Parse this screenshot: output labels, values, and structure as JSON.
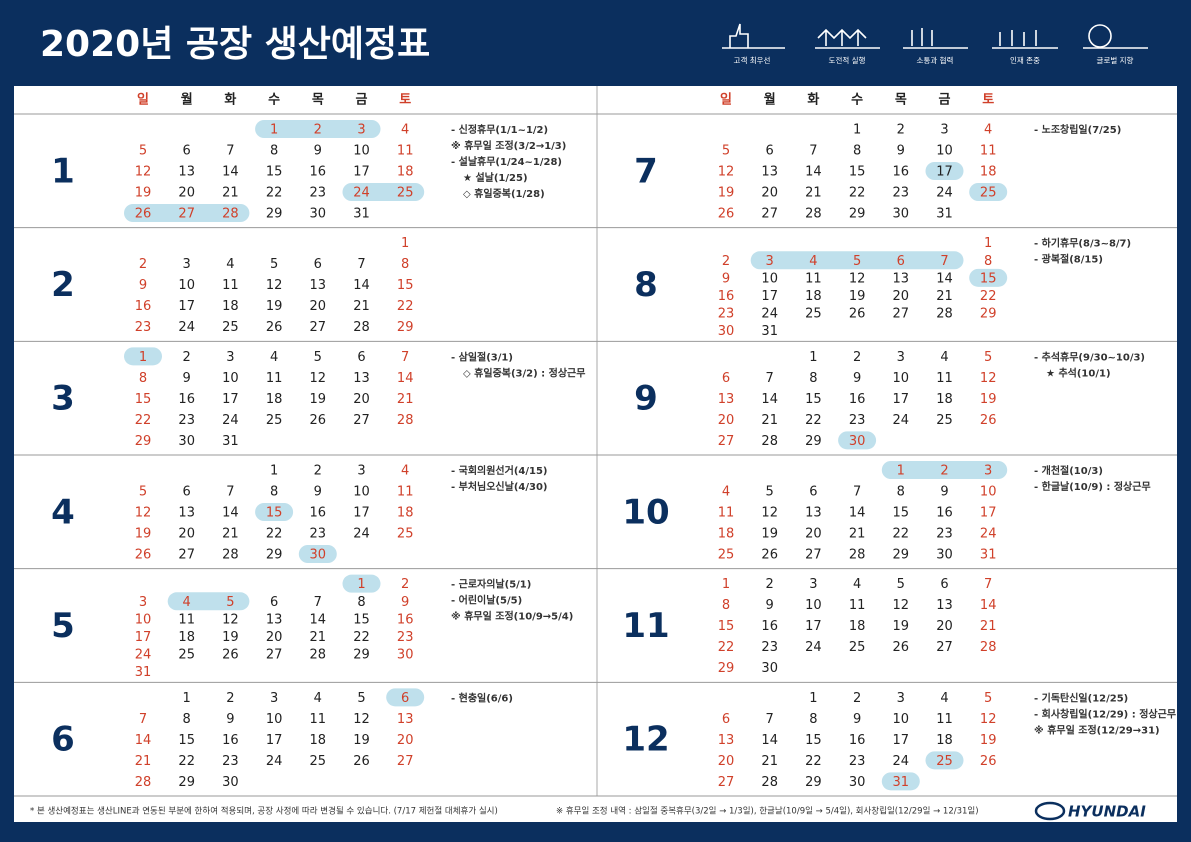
{
  "header": {
    "title": "2020년 공장 생산예정표",
    "values": [
      "고객 최우선",
      "도전적 실행",
      "소통과 협력",
      "인재 존중",
      "글로벌 지향"
    ]
  },
  "weekdays": [
    "일",
    "월",
    "화",
    "수",
    "목",
    "금",
    "토"
  ],
  "months": [
    {
      "label": "1",
      "weeks": [
        [
          null,
          null,
          null,
          1,
          2,
          3,
          4
        ],
        [
          5,
          6,
          7,
          8,
          9,
          10,
          11
        ],
        [
          12,
          13,
          14,
          15,
          16,
          17,
          18
        ],
        [
          19,
          20,
          21,
          22,
          23,
          24,
          25
        ],
        [
          26,
          27,
          28,
          29,
          30,
          31,
          null
        ]
      ],
      "red": [
        1,
        2,
        3,
        24,
        27,
        28
      ],
      "highlight": [
        1,
        2,
        3,
        24,
        25,
        26,
        27,
        28
      ],
      "notes": [
        "- 신정휴무(1/1~1/2)",
        "※ 휴무일 조정(3/2→1/3)",
        "- 설날휴무(1/24~1/28)",
        "★ 설날(1/25)",
        "◇ 휴일중복(1/28)"
      ]
    },
    {
      "label": "2",
      "weeks": [
        [
          null,
          null,
          null,
          null,
          null,
          null,
          1
        ],
        [
          2,
          3,
          4,
          5,
          6,
          7,
          8
        ],
        [
          9,
          10,
          11,
          12,
          13,
          14,
          15
        ],
        [
          16,
          17,
          18,
          19,
          20,
          21,
          22
        ],
        [
          23,
          24,
          25,
          26,
          27,
          28,
          29
        ]
      ],
      "red": [],
      "highlight": [],
      "notes": []
    },
    {
      "label": "3",
      "weeks": [
        [
          1,
          2,
          3,
          4,
          5,
          6,
          7
        ],
        [
          8,
          9,
          10,
          11,
          12,
          13,
          14
        ],
        [
          15,
          16,
          17,
          18,
          19,
          20,
          21
        ],
        [
          22,
          23,
          24,
          25,
          26,
          27,
          28
        ],
        [
          29,
          30,
          31,
          null,
          null,
          null,
          null
        ]
      ],
      "red": [],
      "highlight": [
        1
      ],
      "notes": [
        "- 삼일절(3/1)",
        "◇ 휴일중복(3/2) : 정상근무"
      ]
    },
    {
      "label": "4",
      "weeks": [
        [
          null,
          null,
          null,
          1,
          2,
          3,
          4
        ],
        [
          5,
          6,
          7,
          8,
          9,
          10,
          11
        ],
        [
          12,
          13,
          14,
          15,
          16,
          17,
          18
        ],
        [
          19,
          20,
          21,
          22,
          23,
          24,
          25
        ],
        [
          26,
          27,
          28,
          29,
          30,
          null,
          null
        ]
      ],
      "red": [
        15,
        30
      ],
      "highlight": [
        15,
        30
      ],
      "notes": [
        "- 국회의원선거(4/15)",
        "- 부처님오신날(4/30)"
      ]
    },
    {
      "label": "5",
      "weeks": [
        [
          null,
          null,
          null,
          null,
          null,
          1,
          2
        ],
        [
          3,
          4,
          5,
          6,
          7,
          8,
          9
        ],
        [
          10,
          11,
          12,
          13,
          14,
          15,
          16
        ],
        [
          17,
          18,
          19,
          20,
          21,
          22,
          23
        ],
        [
          24,
          25,
          26,
          27,
          28,
          29,
          30
        ],
        [
          31,
          null,
          null,
          null,
          null,
          null,
          null
        ]
      ],
      "red": [
        1,
        4,
        5
      ],
      "highlight": [
        1,
        4,
        5
      ],
      "notes": [
        "- 근로자의날(5/1)",
        "- 어린이날(5/5)",
        "※ 휴무일 조정(10/9→5/4)"
      ]
    },
    {
      "label": "6",
      "weeks": [
        [
          null,
          1,
          2,
          3,
          4,
          5,
          6
        ],
        [
          7,
          8,
          9,
          10,
          11,
          12,
          13
        ],
        [
          14,
          15,
          16,
          17,
          18,
          19,
          20
        ],
        [
          21,
          22,
          23,
          24,
          25,
          26,
          27
        ],
        [
          28,
          29,
          30,
          null,
          null,
          null,
          null
        ]
      ],
      "red": [],
      "highlight": [
        6
      ],
      "notes": [
        "- 현충일(6/6)"
      ]
    },
    {
      "label": "7",
      "weeks": [
        [
          null,
          null,
          null,
          1,
          2,
          3,
          4
        ],
        [
          5,
          6,
          7,
          8,
          9,
          10,
          11
        ],
        [
          12,
          13,
          14,
          15,
          16,
          17,
          18
        ],
        [
          19,
          20,
          21,
          22,
          23,
          24,
          25
        ],
        [
          26,
          27,
          28,
          29,
          30,
          31,
          null
        ]
      ],
      "red": [],
      "highlight": [
        17,
        25
      ],
      "notes": [
        "- 노조창립일(7/25)"
      ]
    },
    {
      "label": "8",
      "weeks": [
        [
          null,
          null,
          null,
          null,
          null,
          null,
          1
        ],
        [
          2,
          3,
          4,
          5,
          6,
          7,
          8
        ],
        [
          9,
          10,
          11,
          12,
          13,
          14,
          15
        ],
        [
          16,
          17,
          18,
          19,
          20,
          21,
          22
        ],
        [
          23,
          24,
          25,
          26,
          27,
          28,
          29
        ],
        [
          30,
          31,
          null,
          null,
          null,
          null,
          null
        ]
      ],
      "red": [
        3,
        4,
        5,
        6,
        7,
        15
      ],
      "highlight": [
        3,
        4,
        5,
        6,
        7,
        15
      ],
      "notes": [
        "- 하기휴무(8/3~8/7)",
        "- 광복절(8/15)"
      ]
    },
    {
      "label": "9",
      "weeks": [
        [
          null,
          null,
          1,
          2,
          3,
          4,
          5
        ],
        [
          6,
          7,
          8,
          9,
          10,
          11,
          12
        ],
        [
          13,
          14,
          15,
          16,
          17,
          18,
          19
        ],
        [
          20,
          21,
          22,
          23,
          24,
          25,
          26
        ],
        [
          27,
          28,
          29,
          30,
          null,
          null,
          null
        ]
      ],
      "red": [
        30
      ],
      "highlight": [
        30
      ],
      "notes": [
        "- 추석휴무(9/30~10/3)",
        "★ 추석(10/1)"
      ]
    },
    {
      "label": "10",
      "weeks": [
        [
          null,
          null,
          null,
          null,
          1,
          2,
          3
        ],
        [
          4,
          5,
          6,
          7,
          8,
          9,
          10
        ],
        [
          11,
          12,
          13,
          14,
          15,
          16,
          17
        ],
        [
          18,
          19,
          20,
          21,
          22,
          23,
          24
        ],
        [
          25,
          26,
          27,
          28,
          29,
          30,
          31
        ]
      ],
      "red": [
        1,
        2,
        3
      ],
      "highlight": [
        1,
        2,
        3
      ],
      "notes": [
        "- 개천절(10/3)",
        "- 한글날(10/9) : 정상근무"
      ]
    },
    {
      "label": "11",
      "weeks": [
        [
          1,
          2,
          3,
          4,
          5,
          6,
          7
        ],
        [
          8,
          9,
          10,
          11,
          12,
          13,
          14
        ],
        [
          15,
          16,
          17,
          18,
          19,
          20,
          21
        ],
        [
          22,
          23,
          24,
          25,
          26,
          27,
          28
        ],
        [
          29,
          30,
          null,
          null,
          null,
          null,
          null
        ]
      ],
      "red": [],
      "highlight": [],
      "notes": []
    },
    {
      "label": "12",
      "weeks": [
        [
          null,
          null,
          1,
          2,
          3,
          4,
          5
        ],
        [
          6,
          7,
          8,
          9,
          10,
          11,
          12
        ],
        [
          13,
          14,
          15,
          16,
          17,
          18,
          19
        ],
        [
          20,
          21,
          22,
          23,
          24,
          25,
          26
        ],
        [
          27,
          28,
          29,
          30,
          31,
          null,
          null
        ]
      ],
      "red": [
        25,
        31
      ],
      "highlight": [
        25,
        31
      ],
      "notes": [
        "- 기독탄신일(12/25)",
        "- 회사창립일(12/29) : 정상근무",
        "※ 휴무일 조정(12/29→31)"
      ]
    }
  ],
  "footer": {
    "note": "* 본 생산예정표는 생산LINE과 연동된 부분에 한하여 적용되며, 공장 사정에 따라 변경될 수 있습니다. (7/17 제헌절 대체휴가 실시)",
    "adjustment": "※ 휴무일 조정 내역 : 삼일절 중복휴무(3/2일 → 1/3일), 한글날(10/9일 → 5/4일), 회사창립일(12/29일 → 12/31일)"
  },
  "logo": "HYUNDAI"
}
